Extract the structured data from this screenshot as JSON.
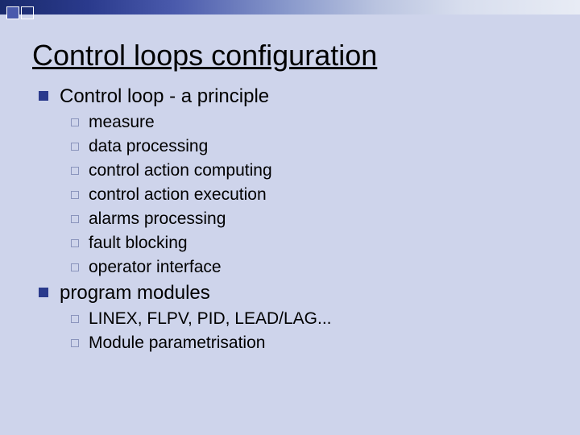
{
  "title": "Control loops configuration",
  "colors": {
    "background": "#ced4eb",
    "bullet_filled": "#2a3a8c",
    "bullet_outline": "#8a94bc",
    "text": "#000000",
    "gradient_start": "#1a2a6c",
    "gradient_end": "#e8ecf5"
  },
  "typography": {
    "title_fontsize": 36,
    "level1_fontsize": 24,
    "level2_fontsize": 21,
    "font_family": "Arial"
  },
  "items": [
    {
      "label": "Control loop - a principle",
      "children": [
        {
          "label": "measure"
        },
        {
          "label": "data processing"
        },
        {
          "label": "control action computing"
        },
        {
          "label": "control action execution"
        },
        {
          "label": "alarms processing"
        },
        {
          "label": "fault blocking"
        },
        {
          "label": "operator interface"
        }
      ]
    },
    {
      "label": "program modules",
      "children": [
        {
          "label": "LINEX, FLPV, PID, LEAD/LAG..."
        },
        {
          "label": "Module parametrisation"
        }
      ]
    }
  ]
}
